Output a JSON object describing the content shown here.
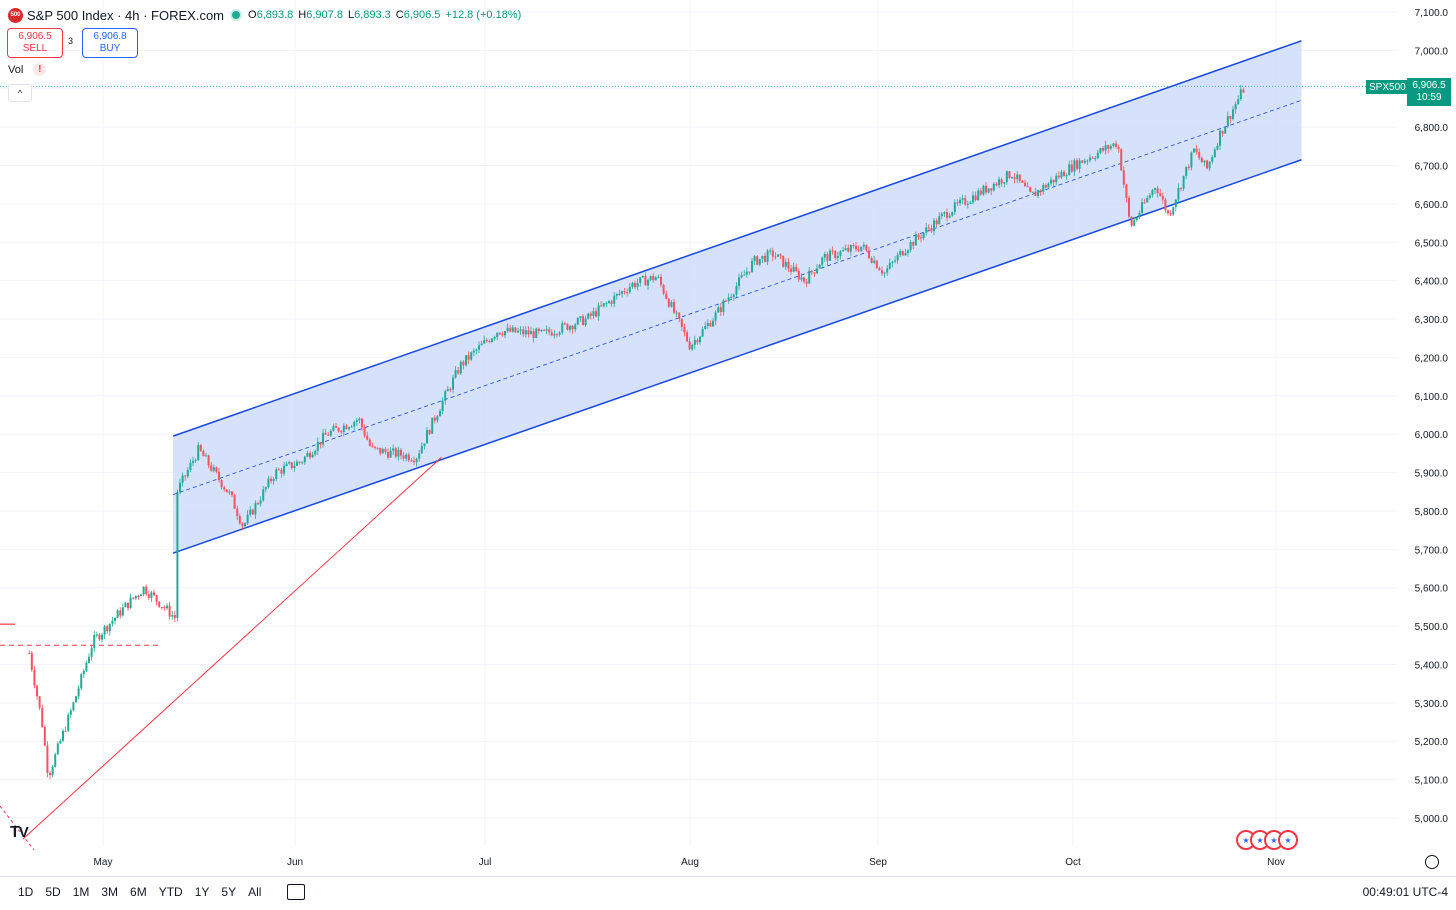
{
  "header": {
    "logo_text": "500",
    "title": "S&P 500 Index · 4h · FOREX.com",
    "open_label": "O",
    "open": "6,893.8",
    "high_label": "H",
    "high": "6,907.8",
    "low_label": "L",
    "low": "6,893.3",
    "close_label": "C",
    "close": "6,906.5",
    "change": "+12.8 (+0.18%)"
  },
  "trade": {
    "sell_price": "6,906.5",
    "sell_label": "SELL",
    "spread": "3",
    "buy_price": "6,906.8",
    "buy_label": "BUY"
  },
  "indicator": {
    "label": "Vol",
    "warn": "!"
  },
  "collapse_icon": "^",
  "price_tag": {
    "symbol": "SPX500",
    "price": "6,906.5",
    "countdown": "10:59"
  },
  "axis": {
    "y_ticks": [
      "7,100.0",
      "7,000.0",
      "6,900.0",
      "6,800.0",
      "6,700.0",
      "6,600.0",
      "6,500.0",
      "6,400.0",
      "6,300.0",
      "6,200.0",
      "6,100.0",
      "6,000.0",
      "5,900.0",
      "5,800.0",
      "5,700.0",
      "5,600.0",
      "5,500.0",
      "5,400.0",
      "5,300.0",
      "5,200.0",
      "5,100.0",
      "5,000.0"
    ],
    "x_ticks": [
      "May",
      "Jun",
      "Jul",
      "Aug",
      "Sep",
      "Oct",
      "Nov"
    ]
  },
  "bottom": {
    "ranges": [
      "1D",
      "5D",
      "1M",
      "3M",
      "6M",
      "YTD",
      "1Y",
      "5Y",
      "All"
    ],
    "clock": "00:49:01 UTC-4"
  },
  "colors": {
    "up": "#22ab94",
    "down": "#f7525f",
    "channel": "#1848e0",
    "channel_fill": "#d1defc",
    "trend": "#f23645",
    "accent": "#2962ff"
  },
  "chart_data": {
    "type": "candlestick",
    "symbol": "SPX500",
    "interval": "4h",
    "ylim": [
      4950,
      7130
    ],
    "x_months": [
      "May",
      "Jun",
      "Jul",
      "Aug",
      "Sep",
      "Oct",
      "Nov"
    ],
    "close_path": [
      {
        "x": "Apr 7",
        "y": 5430
      },
      {
        "x": "Apr 9",
        "y": 5250
      },
      {
        "x": "Apr 10",
        "y": 5110
      },
      {
        "x": "Apr 14",
        "y": 5300
      },
      {
        "x": "Apr 17",
        "y": 5460
      },
      {
        "x": "Apr 22",
        "y": 5550
      },
      {
        "x": "Apr 25",
        "y": 5600
      },
      {
        "x": "Apr 30",
        "y": 5520
      },
      {
        "x": "May 2",
        "y": 5680
      },
      {
        "x": "May 6",
        "y": 5640
      },
      {
        "x": "May 9",
        "y": 5660
      },
      {
        "x": "May 12",
        "y": 5830
      },
      {
        "x": "May 16",
        "y": 5960
      },
      {
        "x": "May 21",
        "y": 5840
      },
      {
        "x": "May 23",
        "y": 5760
      },
      {
        "x": "May 28",
        "y": 5900
      },
      {
        "x": "Jun 2",
        "y": 5930
      },
      {
        "x": "Jun 6",
        "y": 6000
      },
      {
        "x": "Jun 11",
        "y": 6040
      },
      {
        "x": "Jun 13",
        "y": 5960
      },
      {
        "x": "Jun 20",
        "y": 5940
      },
      {
        "x": "Jun 24",
        "y": 6080
      },
      {
        "x": "Jun 27",
        "y": 6180
      },
      {
        "x": "Jul 3",
        "y": 6270
      },
      {
        "x": "Jul 10",
        "y": 6260
      },
      {
        "x": "Jul 17",
        "y": 6300
      },
      {
        "x": "Jul 24",
        "y": 6390
      },
      {
        "x": "Jul 28",
        "y": 6410
      },
      {
        "x": "Aug 1",
        "y": 6230
      },
      {
        "x": "Aug 5",
        "y": 6310
      },
      {
        "x": "Aug 11",
        "y": 6450
      },
      {
        "x": "Aug 14",
        "y": 6470
      },
      {
        "x": "Aug 19",
        "y": 6400
      },
      {
        "x": "Aug 22",
        "y": 6460
      },
      {
        "x": "Aug 28",
        "y": 6490
      },
      {
        "x": "Sep 2",
        "y": 6420
      },
      {
        "x": "Sep 5",
        "y": 6480
      },
      {
        "x": "Sep 12",
        "y": 6580
      },
      {
        "x": "Sep 18",
        "y": 6640
      },
      {
        "x": "Sep 22",
        "y": 6680
      },
      {
        "x": "Sep 25",
        "y": 6620
      },
      {
        "x": "Oct 1",
        "y": 6700
      },
      {
        "x": "Oct 8",
        "y": 6760
      },
      {
        "x": "Oct 10",
        "y": 6540
      },
      {
        "x": "Oct 14",
        "y": 6650
      },
      {
        "x": "Oct 16",
        "y": 6570
      },
      {
        "x": "Oct 20",
        "y": 6740
      },
      {
        "x": "Oct 22",
        "y": 6690
      },
      {
        "x": "Oct 24",
        "y": 6780
      },
      {
        "x": "Oct 27",
        "y": 6875
      },
      {
        "x": "Oct 28",
        "y": 6906.5
      }
    ],
    "last_price": 6906.5,
    "channel": {
      "upper": [
        {
          "x": "May 12",
          "y": 5995
        },
        {
          "x": "Nov 5",
          "y": 7025
        }
      ],
      "lower": [
        {
          "x": "May 12",
          "y": 5690
        },
        {
          "x": "Nov 5",
          "y": 6715
        }
      ]
    },
    "trendline": [
      {
        "x": "Apr 6",
        "y": 4945
      },
      {
        "x": "Jun 24",
        "y": 5940
      }
    ],
    "support_level": 5450
  }
}
